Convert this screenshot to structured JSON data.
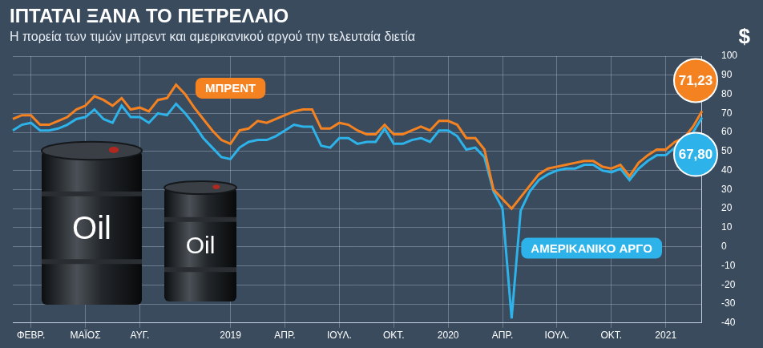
{
  "chart_data": {
    "type": "line",
    "title": "ΙΠΤΑΤΑΙ ΞΑΝΑ ΤΟ ΠΕΤΡΕΛΑΙΟ",
    "subtitle": "Η πορεία των τιμών μπρεντ και αμερικανικού αργού την τελευταία διετία",
    "ylabel": "$",
    "categories": [
      null,
      null,
      "ΦΕΒΡ.",
      null,
      null,
      null,
      null,
      null,
      "ΜΑΪΟΣ",
      null,
      null,
      null,
      null,
      null,
      "ΑΥΓ.",
      null,
      null,
      null,
      null,
      null,
      null,
      null,
      null,
      null,
      "2019",
      null,
      null,
      null,
      null,
      null,
      "ΑΠΡ.",
      null,
      null,
      null,
      null,
      null,
      "ΙΟΥΛ.",
      null,
      null,
      null,
      null,
      null,
      "ΟΚΤ.",
      null,
      null,
      null,
      null,
      null,
      "2020",
      null,
      null,
      null,
      null,
      null,
      "ΑΠΡ.",
      null,
      null,
      null,
      null,
      null,
      "ΙΟΥΛ.",
      null,
      null,
      null,
      null,
      null,
      "ΟΚΤ.",
      null,
      null,
      null,
      null,
      null,
      "2021",
      null,
      null,
      null,
      null
    ],
    "series": [
      {
        "name": "ΜΠΡΕΝΤ",
        "color": "#f58220",
        "values": [
          67,
          69,
          69,
          64,
          64,
          66,
          68,
          72,
          74,
          79,
          77,
          74,
          78,
          72,
          73,
          71,
          77,
          78,
          85,
          80,
          73,
          67,
          61,
          56,
          54,
          61,
          62,
          66,
          65,
          67,
          69,
          71,
          72,
          72,
          62,
          62,
          65,
          64,
          61,
          59,
          59,
          64,
          59,
          59,
          61,
          63,
          61,
          66,
          66,
          64,
          57,
          57,
          51,
          30,
          25,
          20,
          26,
          32,
          38,
          41,
          42,
          43,
          44,
          45,
          45,
          42,
          41,
          43,
          37,
          44,
          48,
          51,
          51,
          55,
          57,
          63,
          71.23
        ]
      },
      {
        "name": "ΑΜΕΡΙΚΑΝΙΚΟ ΑΡΓΟ",
        "color": "#2db3ea",
        "values": [
          61,
          64,
          65,
          61,
          61,
          62,
          64,
          67,
          68,
          72,
          67,
          65,
          74,
          68,
          68,
          65,
          70,
          69,
          75,
          70,
          64,
          57,
          52,
          47,
          46,
          52,
          55,
          56,
          56,
          58,
          61,
          64,
          63,
          63,
          53,
          52,
          57,
          57,
          54,
          55,
          55,
          62,
          54,
          54,
          56,
          57,
          55,
          61,
          61,
          58,
          51,
          52,
          47,
          29,
          20,
          -37.63,
          19,
          29,
          35,
          38,
          40,
          41,
          41,
          43,
          43,
          40,
          39,
          41,
          35,
          41,
          45,
          48,
          48,
          52,
          54,
          60,
          67.8
        ]
      }
    ],
    "annotations": [
      {
        "text": "71,23",
        "series": "ΜΠΡΕΝΤ",
        "value": 71.23
      },
      {
        "text": "67,80",
        "series": "ΑΜΕΡΙΚΑΝΙΚΟ ΑΡΓΟ",
        "value": 67.8
      }
    ],
    "barrel_labels": [
      "Oil",
      "Oil"
    ],
    "ylim": [
      -40,
      100
    ],
    "yticks": [
      -40,
      -30,
      -20,
      -10,
      0,
      10,
      20,
      30,
      40,
      50,
      60,
      70,
      80,
      90,
      100
    ],
    "grid": true
  }
}
